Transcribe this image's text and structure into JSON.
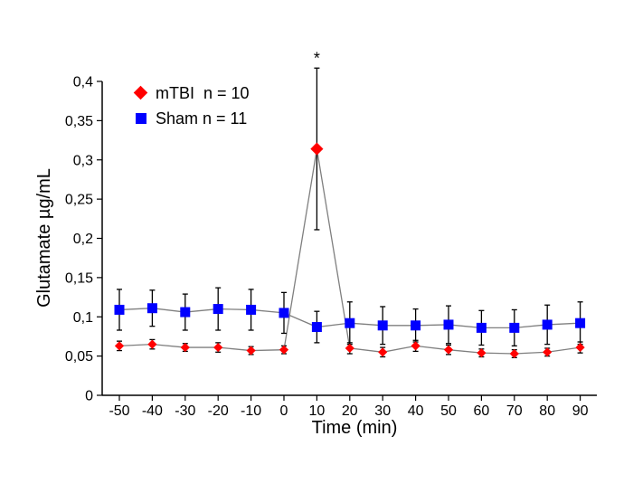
{
  "chart_data": {
    "type": "line",
    "title": "",
    "xlabel": "Time (min)",
    "ylabel": "Glutamate µg/mL",
    "ylim": [
      0,
      0.4
    ],
    "yticks": [
      0,
      0.05,
      0.1,
      0.15,
      0.2,
      0.25,
      0.3,
      0.35,
      0.4
    ],
    "ytick_labels": [
      "0",
      "0,05",
      "0,1",
      "0,15",
      "0,2",
      "0,25",
      "0,3",
      "0,35",
      "0,4"
    ],
    "categories": [
      "-50",
      "-40",
      "-30",
      "-20",
      "-10",
      "0",
      "10",
      "20",
      "30",
      "40",
      "50",
      "60",
      "70",
      "80",
      "90"
    ],
    "grid": false,
    "legend_position": "top-left",
    "series": [
      {
        "name": "mTBI  n = 10",
        "marker": "diamond",
        "color": "#ff0000",
        "values": [
          0.063,
          0.065,
          0.061,
          0.061,
          0.057,
          0.058,
          0.314,
          0.06,
          0.055,
          0.063,
          0.058,
          0.054,
          0.053,
          0.055,
          0.061
        ],
        "errors": [
          0.006,
          0.006,
          0.005,
          0.006,
          0.005,
          0.005,
          0.103,
          0.007,
          0.006,
          0.007,
          0.006,
          0.005,
          0.005,
          0.005,
          0.007
        ]
      },
      {
        "name": "Sham n = 11",
        "marker": "square",
        "color": "#0000ff",
        "values": [
          0.109,
          0.111,
          0.106,
          0.11,
          0.109,
          0.105,
          0.087,
          0.092,
          0.089,
          0.089,
          0.09,
          0.086,
          0.086,
          0.09,
          0.092
        ],
        "errors": [
          0.026,
          0.023,
          0.023,
          0.027,
          0.026,
          0.026,
          0.02,
          0.027,
          0.024,
          0.021,
          0.024,
          0.022,
          0.023,
          0.025,
          0.027
        ]
      }
    ],
    "annotations": [
      {
        "text": "*",
        "category": "10"
      }
    ],
    "colors": {
      "connector": "#7f7f7f",
      "error_bar": "#000000",
      "axis": "#000000"
    }
  }
}
